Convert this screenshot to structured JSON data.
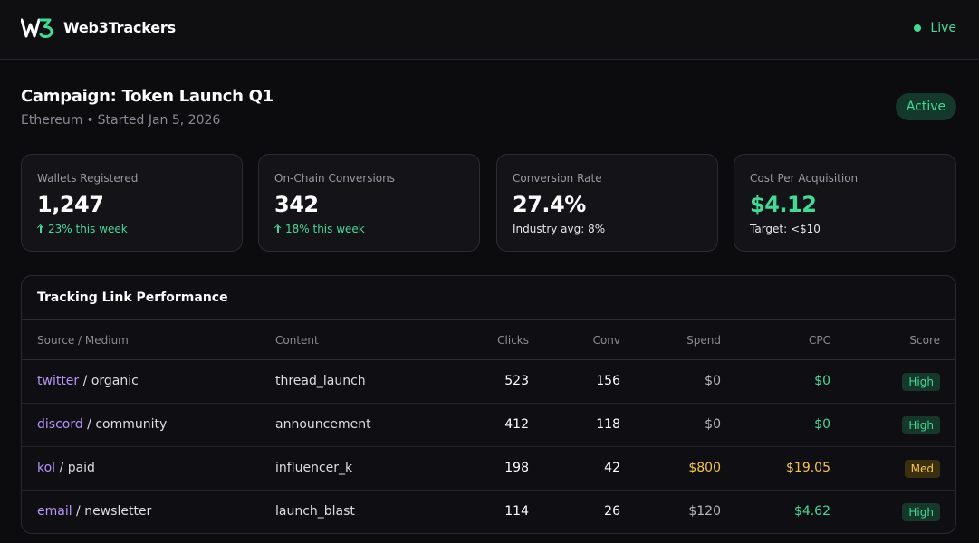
{
  "app": {
    "brand": "Web3Trackers",
    "status": "Live"
  },
  "campaign": {
    "title": "Campaign: Token Launch Q1",
    "network": "Ethereum",
    "separator": "•",
    "started": "Started Jan 5, 2026",
    "status": "Active"
  },
  "metrics": [
    {
      "label": "Wallets Registered",
      "value": "1,247",
      "note": "23% this week",
      "trend": "up"
    },
    {
      "label": "On-Chain Conversions",
      "value": "342",
      "note": "18% this week",
      "trend": "up"
    },
    {
      "label": "Conversion Rate",
      "value": "27.4%",
      "note": "Industry avg: 8%"
    },
    {
      "label": "Cost Per Acquisition",
      "value": "$4.12",
      "note": "Target: <$10"
    }
  ],
  "table": {
    "title": "Tracking Link Performance",
    "columns": [
      "Source / Medium",
      "Content",
      "Clicks",
      "Conv",
      "Spend",
      "CPC",
      "Score"
    ],
    "rows": [
      {
        "source": "twitter",
        "medium": "organic",
        "content": "thread_launch",
        "clicks": "523",
        "conv": "156",
        "spend": "$0",
        "cpc": "$0",
        "score": "High"
      },
      {
        "source": "discord",
        "medium": "community",
        "content": "announcement",
        "clicks": "412",
        "conv": "118",
        "spend": "$0",
        "cpc": "$0",
        "score": "High"
      },
      {
        "source": "kol",
        "medium": "paid",
        "content": "influencer_k",
        "clicks": "198",
        "conv": "42",
        "spend": "$800",
        "cpc": "$19.05",
        "score": "Med"
      },
      {
        "source": "email",
        "medium": "newsletter",
        "content": "launch_blast",
        "clicks": "114",
        "conv": "26",
        "spend": "$120",
        "cpc": "$4.62",
        "score": "High"
      }
    ]
  },
  "colors": {
    "accent_green": "#3ddc97",
    "accent_purple": "#b794f6",
    "warn_yellow": "#f5c542",
    "background": "#0c0c0f"
  }
}
